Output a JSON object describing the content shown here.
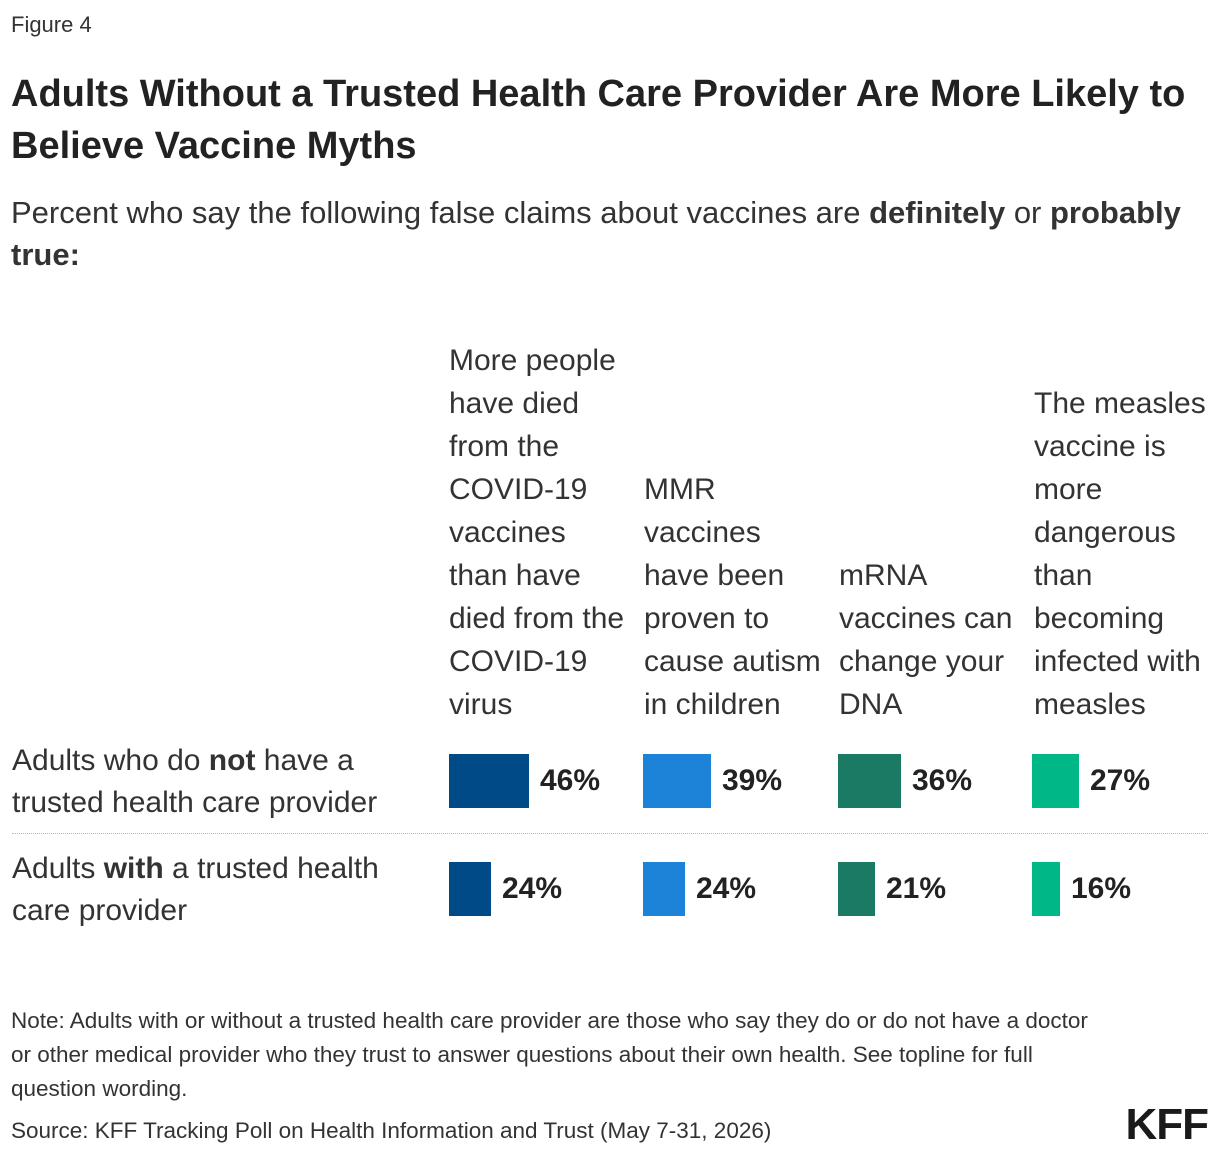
{
  "figure_label": "Figure 4",
  "title": "Adults Without a Trusted Health Care Provider Are More Likely to Believe Vaccine Myths",
  "subtitle": {
    "part1": "Percent who say the following false claims about vaccines are ",
    "bold1": "definitely",
    "part2": " or ",
    "bold2": "probably true:"
  },
  "row_labels": [
    {
      "pre": "Adults who do ",
      "bold": "not",
      "post": " have a trusted health care provider"
    },
    {
      "pre": "Adults ",
      "bold": "with",
      "post": " a trusted health care provider"
    }
  ],
  "chart_data": {
    "type": "bar",
    "categories": [
      "More people have died from the COVID-19 vaccines than have died from the COVID-19 virus",
      "MMR vaccines have been proven to cause autism in children",
      "mRNA vaccines can change your DNA",
      "The measles vaccine is more dangerous than becoming infected with measles"
    ],
    "series": [
      {
        "values": [
          46,
          39,
          36,
          27
        ]
      },
      {
        "values": [
          24,
          24,
          21,
          16
        ]
      }
    ],
    "value_labels": [
      [
        "46%",
        "39%",
        "36%",
        "27%"
      ],
      [
        "24%",
        "24%",
        "21%",
        "16%"
      ]
    ],
    "colors": [
      "#004a87",
      "#1d83d9",
      "#1b7a63",
      "#00b787"
    ],
    "unit": "%"
  },
  "note": "Note: Adults with or without a trusted health care provider are those who say they do or do not have a doctor or other medical provider who they trust to answer questions about their own health. See topline for full question wording.",
  "source": "Source: KFF Tracking Poll on Health Information and Trust (May 7-31, 2026)",
  "logo_text": "KFF"
}
